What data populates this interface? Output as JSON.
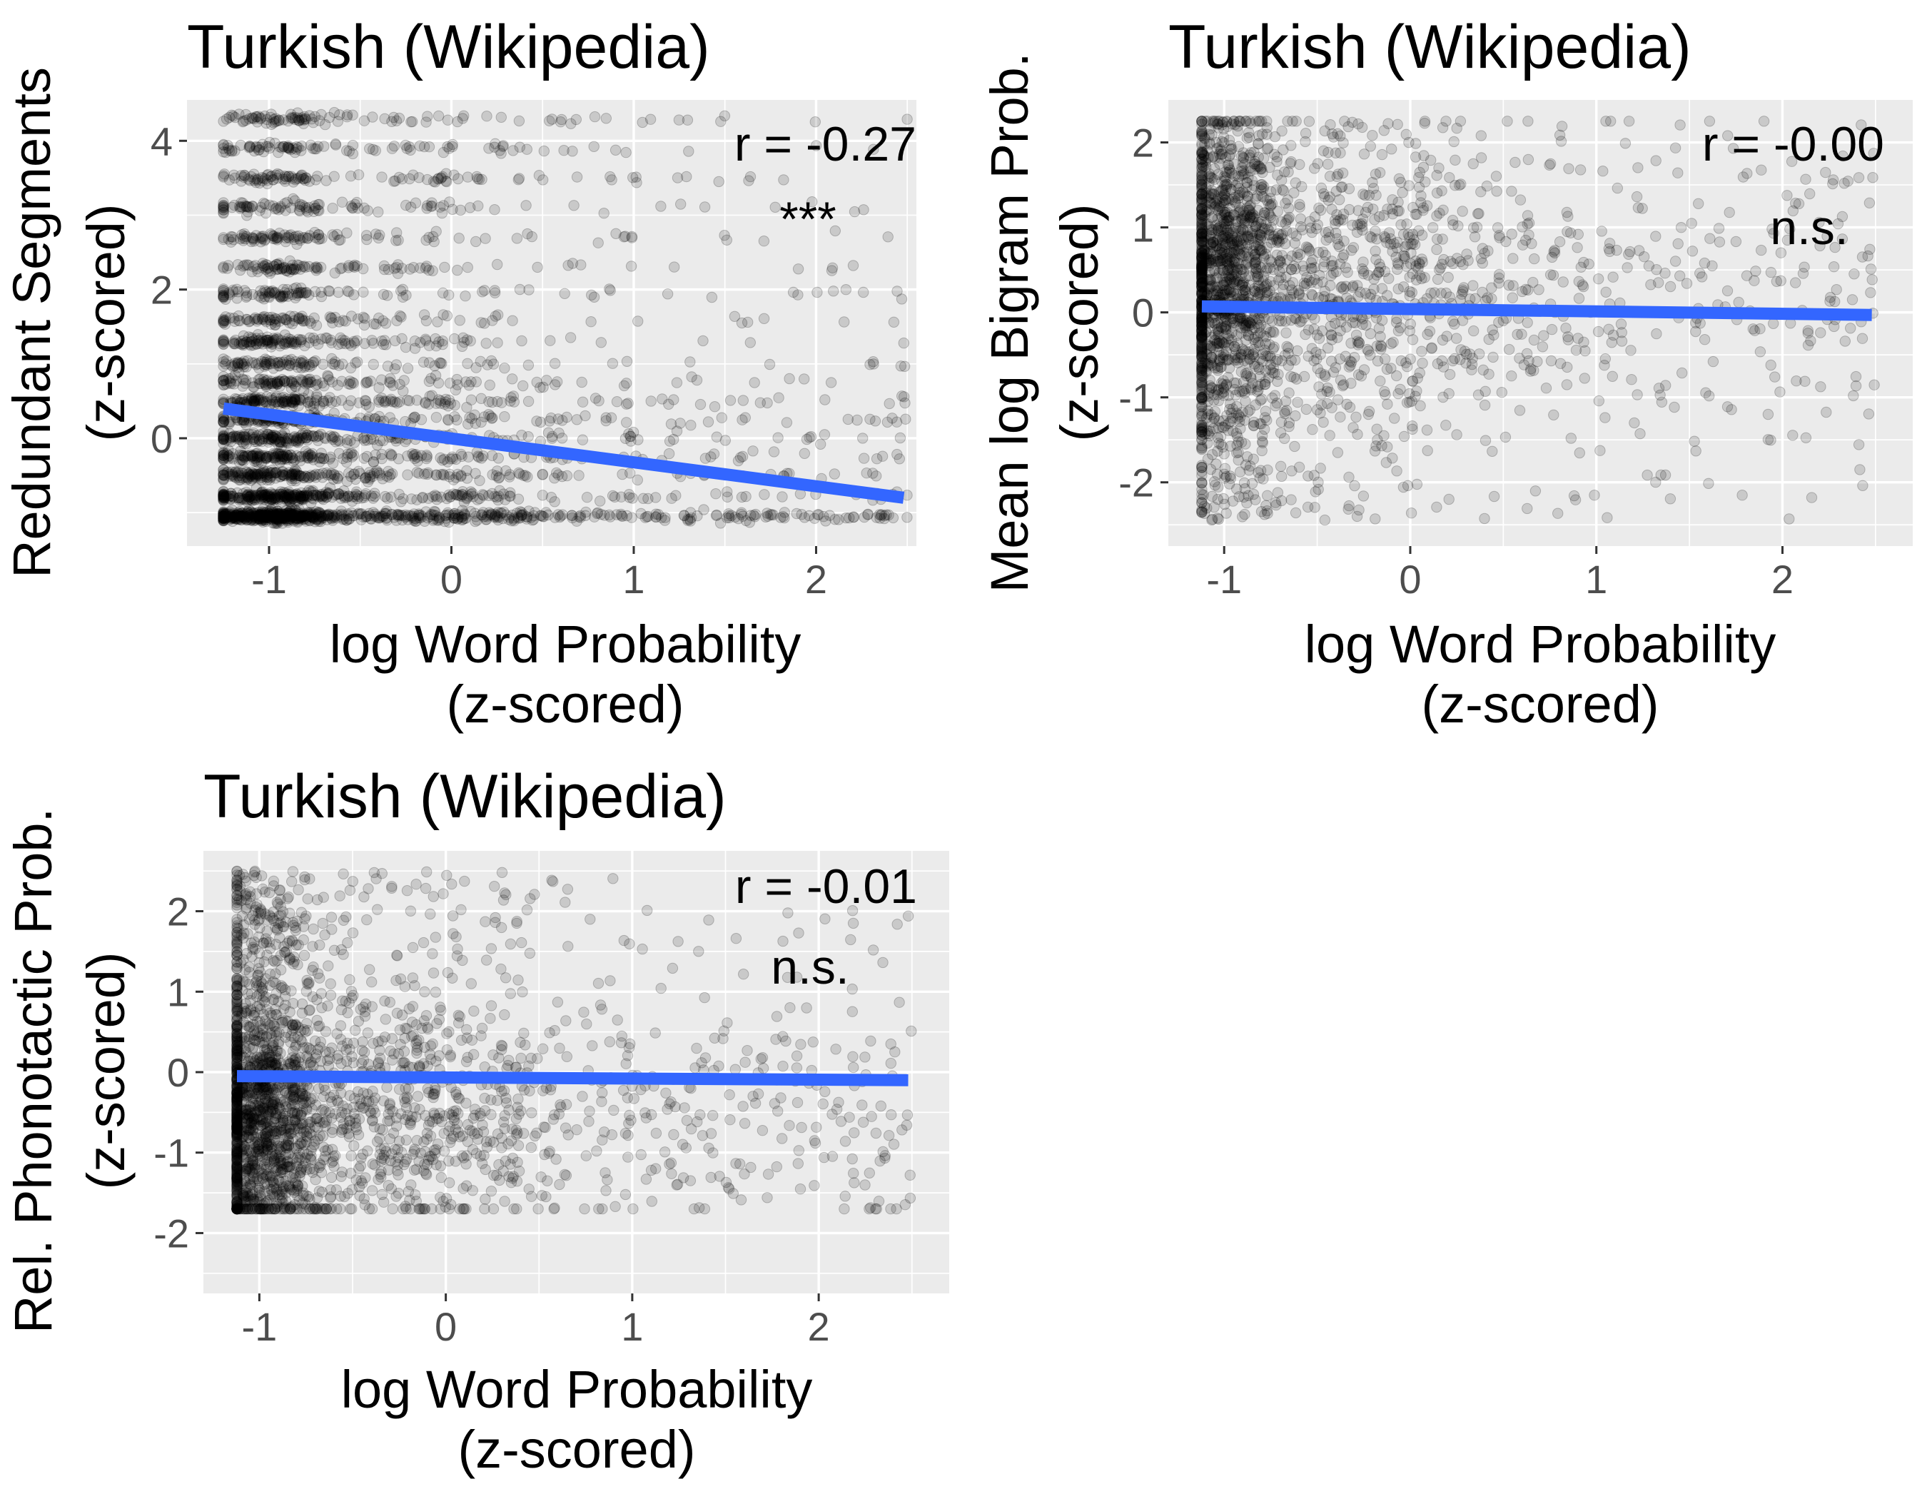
{
  "chart_data": [
    {
      "type": "scatter",
      "title": "Turkish (Wikipedia)",
      "xlabel": [
        "log Word Probability",
        "(z-scored)"
      ],
      "ylabel": [
        "Redundant Segments",
        "(z-scored)"
      ],
      "xlim": [
        -1.45,
        2.55
      ],
      "ylim": [
        -1.45,
        4.55
      ],
      "x_ticks": [
        -1,
        0,
        1,
        2
      ],
      "y_ticks": [
        0,
        2,
        4
      ],
      "x_tick_labels": [
        "-1",
        "0",
        "1",
        "2"
      ],
      "y_tick_labels": [
        "0",
        "2",
        "4"
      ],
      "grid": true,
      "correlation": "r = -0.27",
      "significance": "***",
      "fit_line": {
        "x": [
          -1.25,
          2.48
        ],
        "y": [
          0.4,
          -0.8
        ]
      },
      "point_cloud": {
        "x_range": [
          -1.25,
          2.5
        ],
        "y_levels": [
          -1.05,
          -0.78,
          -0.5,
          -0.25,
          0.0,
          0.25,
          0.5,
          0.75,
          1.0,
          1.3,
          1.6,
          1.95,
          2.3,
          2.7,
          3.1,
          3.5,
          3.9,
          4.3
        ],
        "note": "dense discrete horizontal bands, densest near x = -1"
      }
    },
    {
      "type": "scatter",
      "title": "Turkish (Wikipedia)",
      "xlabel": [
        "log Word Probability",
        "(z-scored)"
      ],
      "ylabel": [
        "Mean log Bigram Prob.",
        "(z-scored)"
      ],
      "xlim": [
        -1.3,
        2.7
      ],
      "ylim": [
        -2.75,
        2.5
      ],
      "x_ticks": [
        -1,
        0,
        1,
        2
      ],
      "y_ticks": [
        -2,
        -1,
        0,
        1,
        2
      ],
      "x_tick_labels": [
        "-1",
        "0",
        "1",
        "2"
      ],
      "y_tick_labels": [
        "-2",
        "-1",
        "0",
        "1",
        "2"
      ],
      "grid": true,
      "correlation": "r = -0.00",
      "significance": "n.s.",
      "fit_line": {
        "x": [
          -1.12,
          2.48
        ],
        "y": [
          0.07,
          -0.03
        ]
      },
      "point_cloud": {
        "x_range": [
          -1.12,
          2.5
        ],
        "y_range": [
          -2.45,
          2.25
        ],
        "note": "dense cluster near x = -1, y between -1 and 1.8"
      }
    },
    {
      "type": "scatter",
      "title": "Turkish (Wikipedia)",
      "xlabel": [
        "log Word Probability",
        "(z-scored)"
      ],
      "ylabel": [
        "Rel. Phonotactic Prob.",
        "(z-scored)"
      ],
      "xlim": [
        -1.3,
        2.7
      ],
      "ylim": [
        -2.75,
        2.75
      ],
      "x_ticks": [
        -1,
        0,
        1,
        2
      ],
      "y_ticks": [
        -2,
        -1,
        0,
        1,
        2
      ],
      "x_tick_labels": [
        "-1",
        "0",
        "1",
        "2"
      ],
      "y_tick_labels": [
        "-2",
        "-1",
        "0",
        "1",
        "2"
      ],
      "grid": true,
      "correlation": "r = -0.01",
      "significance": "n.s.",
      "fit_line": {
        "x": [
          -1.12,
          2.48
        ],
        "y": [
          -0.05,
          -0.1
        ]
      },
      "point_cloud": {
        "x_range": [
          -1.12,
          2.5
        ],
        "y_range": [
          -1.7,
          2.5
        ],
        "note": "dense cluster near x = -1, y between -1.2 and 0"
      }
    }
  ],
  "colors": {
    "panel_background": "#ebebeb",
    "grid": "#ffffff",
    "points": "#000000",
    "fit_line": "#3366ff",
    "tick_labels": "#4d4d4d"
  }
}
